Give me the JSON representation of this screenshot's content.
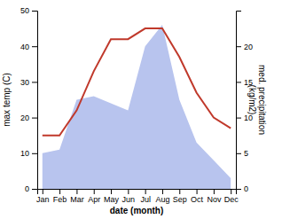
{
  "chart_data": {
    "type": "line",
    "categories": [
      "Jan",
      "Feb",
      "Mar",
      "Apr",
      "May",
      "Jun",
      "Jul",
      "Aug",
      "Sep",
      "Oct",
      "Nov",
      "Dec"
    ],
    "series": [
      {
        "type": "area",
        "color": "#b8c4ee",
        "axis": "y2",
        "values": [
          5,
          5.5,
          12.5,
          13,
          12,
          11,
          20,
          23,
          12.5,
          6.5,
          4,
          1.5
        ]
      },
      {
        "type": "line",
        "color": "#c0392b",
        "values": [
          15,
          15,
          22,
          33,
          42,
          42,
          45,
          45,
          37,
          27,
          20,
          17
        ]
      }
    ],
    "xlabel": "date (month)",
    "ylabel": "max temp (C)",
    "y2label": "med. precipitation\n(kg/m2)",
    "ylim": [
      0,
      50
    ],
    "yticks": [
      0,
      10,
      20,
      30,
      40,
      50
    ],
    "y2lim": [
      0,
      25
    ],
    "y2ticks": [
      0,
      5,
      10,
      15,
      20
    ],
    "grid": false
  }
}
